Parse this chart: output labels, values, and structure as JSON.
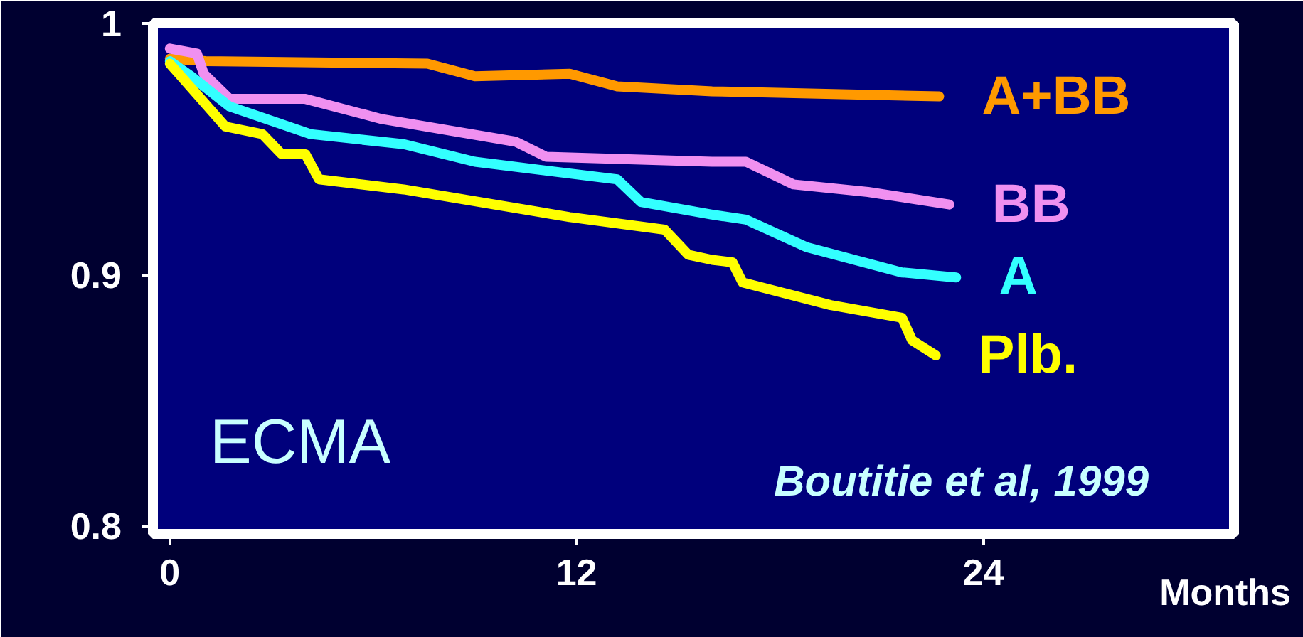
{
  "chart_data": {
    "type": "line",
    "xlabel": "Months",
    "annotations": [
      "ECMA",
      "Boutitie et al, 1999"
    ],
    "xlim": [
      -0.5,
      31.4
    ],
    "ylim": [
      0.797,
      1.0
    ],
    "xticks": [
      0,
      12,
      24
    ],
    "yticks": [
      {
        "value": 1.0,
        "label": "1"
      },
      0.9,
      0.8
    ],
    "grid": false,
    "line_style": "solid",
    "series": [
      {
        "name": "A+BB",
        "color": "#ff9900",
        "x": [
          0,
          1.05,
          7.6,
          9.0,
          11.8,
          13.2,
          16.0,
          22.7
        ],
        "values": [
          0.986,
          0.985,
          0.984,
          0.979,
          0.98,
          0.975,
          0.973,
          0.971
        ]
      },
      {
        "name": "BB",
        "color": "#f090f0",
        "x": [
          0,
          0.8,
          1.0,
          1.76,
          4.0,
          6.25,
          10.2,
          11.1,
          16.0,
          17.0,
          18.4,
          20.6,
          23.0
        ],
        "values": [
          0.99,
          0.988,
          0.98,
          0.97,
          0.97,
          0.962,
          0.953,
          0.947,
          0.945,
          0.945,
          0.936,
          0.933,
          0.928
        ]
      },
      {
        "name": "A",
        "color": "#33ffff",
        "x": [
          0,
          0.63,
          1.76,
          4.15,
          6.9,
          9.0,
          13.2,
          13.9,
          16.0,
          17.0,
          18.8,
          21.6,
          23.2
        ],
        "values": [
          0.985,
          0.979,
          0.967,
          0.956,
          0.952,
          0.945,
          0.938,
          0.929,
          0.924,
          0.922,
          0.911,
          0.901,
          0.899
        ]
      },
      {
        "name": "Plb.",
        "color": "#ffff00",
        "x": [
          0,
          1.64,
          2.73,
          3.3,
          4.0,
          4.4,
          6.9,
          11.8,
          14.6,
          15.3,
          16.0,
          16.6,
          16.9,
          19.5,
          21.6,
          21.9,
          22.6
        ],
        "values": [
          0.984,
          0.959,
          0.956,
          0.948,
          0.948,
          0.938,
          0.934,
          0.923,
          0.918,
          0.908,
          0.906,
          0.905,
          0.897,
          0.888,
          0.883,
          0.874,
          0.868
        ]
      }
    ]
  }
}
